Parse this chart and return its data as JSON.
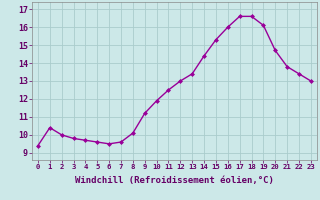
{
  "x": [
    0,
    1,
    2,
    3,
    4,
    5,
    6,
    7,
    8,
    9,
    10,
    11,
    12,
    13,
    14,
    15,
    16,
    17,
    18,
    19,
    20,
    21,
    22,
    23
  ],
  "y": [
    9.4,
    10.4,
    10.0,
    9.8,
    9.7,
    9.6,
    9.5,
    9.6,
    10.1,
    11.2,
    11.9,
    12.5,
    13.0,
    13.4,
    14.4,
    15.3,
    16.0,
    16.6,
    16.6,
    16.1,
    14.7,
    13.8,
    13.4,
    13.0
  ],
  "line_color": "#990099",
  "marker": "D",
  "marker_size": 2.0,
  "xlabel": "Windchill (Refroidissement éolien,°C)",
  "xlabel_fontsize": 6.5,
  "ytick_labels": [
    "9",
    "10",
    "11",
    "12",
    "13",
    "14",
    "15",
    "16",
    "17"
  ],
  "ytick_values": [
    9,
    10,
    11,
    12,
    13,
    14,
    15,
    16,
    17
  ],
  "xtick_labels": [
    "0",
    "1",
    "2",
    "3",
    "4",
    "5",
    "6",
    "7",
    "8",
    "9",
    "10",
    "11",
    "12",
    "13",
    "14",
    "15",
    "16",
    "17",
    "18",
    "19",
    "20",
    "21",
    "22",
    "23"
  ],
  "ylim": [
    8.6,
    17.4
  ],
  "xlim": [
    -0.5,
    23.5
  ],
  "bg_color": "#cce8e8",
  "grid_color": "#aacccc",
  "ytick_fontsize": 6.0,
  "xtick_fontsize": 5.2,
  "line_width": 1.0
}
